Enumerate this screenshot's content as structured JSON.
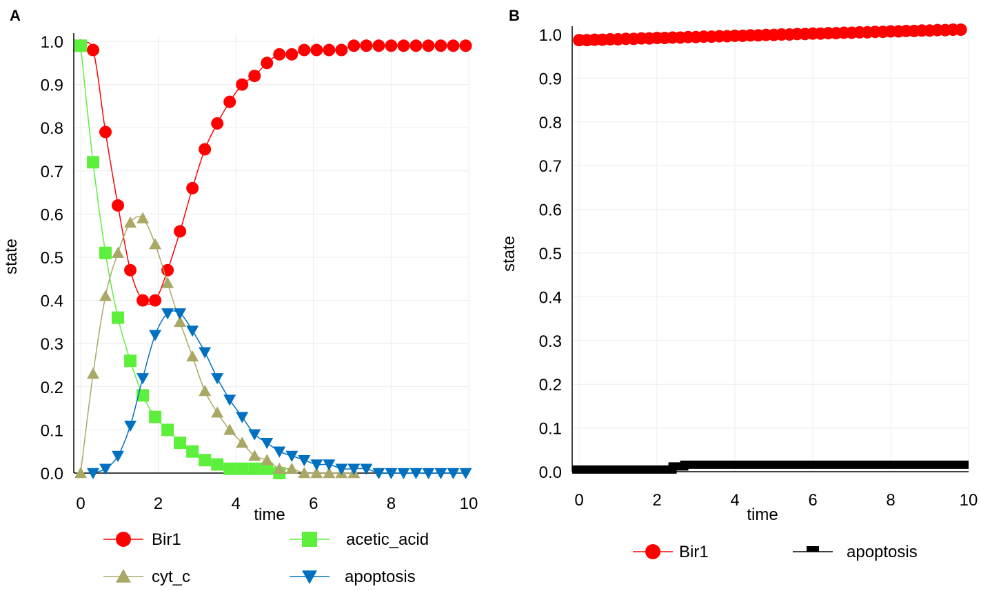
{
  "panels": [
    {
      "label": "A"
    },
    {
      "label": "B"
    }
  ],
  "chart_data": [
    {
      "type": "line",
      "panel": "A",
      "xlabel": "time",
      "ylabel": "state",
      "xlim": [
        0,
        10
      ],
      "ylim": [
        0,
        1
      ],
      "xticks": [
        "0",
        "2",
        "4",
        "6",
        "8",
        "10"
      ],
      "yticks": [
        "0.0",
        "0.1",
        "0.2",
        "0.3",
        "0.4",
        "0.5",
        "0.6",
        "0.7",
        "0.8",
        "0.9",
        "1.0"
      ],
      "grid": true,
      "series": [
        {
          "name": "Bir1",
          "color": "#ff0000",
          "marker": "circle",
          "x": [
            0,
            0.32,
            0.64,
            0.96,
            1.28,
            1.6,
            1.92,
            2.24,
            2.56,
            2.88,
            3.2,
            3.52,
            3.84,
            4.16,
            4.48,
            4.8,
            5.12,
            5.44,
            5.76,
            6.08,
            6.4,
            6.72,
            7.04,
            7.36,
            7.68,
            8.0,
            8.32,
            8.64,
            8.96,
            9.28,
            9.6,
            9.92
          ],
          "values": [
            0.99,
            0.98,
            0.79,
            0.62,
            0.47,
            0.4,
            0.4,
            0.47,
            0.56,
            0.66,
            0.75,
            0.81,
            0.86,
            0.9,
            0.92,
            0.95,
            0.97,
            0.97,
            0.98,
            0.98,
            0.98,
            0.98,
            0.99,
            0.99,
            0.99,
            0.99,
            0.99,
            0.99,
            0.99,
            0.99,
            0.99,
            0.99
          ]
        },
        {
          "name": "acetic_acid",
          "color": "#5cf03c",
          "marker": "square",
          "x": [
            0,
            0.32,
            0.64,
            0.96,
            1.28,
            1.6,
            1.92,
            2.24,
            2.56,
            2.88,
            3.2,
            3.52,
            3.84,
            4.16,
            4.48,
            4.8,
            5.12
          ],
          "values": [
            0.99,
            0.72,
            0.51,
            0.36,
            0.26,
            0.18,
            0.13,
            0.1,
            0.07,
            0.05,
            0.03,
            0.02,
            0.01,
            0.01,
            0.01,
            0.01,
            0.0
          ]
        },
        {
          "name": "cyt_c",
          "color": "#aaa866",
          "marker": "triangle-up",
          "x": [
            0,
            0.32,
            0.64,
            0.96,
            1.28,
            1.6,
            1.92,
            2.24,
            2.56,
            2.88,
            3.2,
            3.52,
            3.84,
            4.16,
            4.48,
            4.8,
            5.12,
            5.44,
            5.76,
            6.08,
            6.4,
            6.72,
            7.04
          ],
          "values": [
            0.0,
            0.23,
            0.41,
            0.51,
            0.58,
            0.59,
            0.53,
            0.44,
            0.35,
            0.27,
            0.19,
            0.14,
            0.1,
            0.07,
            0.04,
            0.03,
            0.01,
            0.01,
            0.0,
            0.0,
            0.0,
            0.0,
            0.0
          ]
        },
        {
          "name": "apoptosis",
          "color": "#0070c0",
          "marker": "triangle-down",
          "x": [
            0.32,
            0.64,
            0.96,
            1.28,
            1.6,
            1.92,
            2.24,
            2.56,
            2.88,
            3.2,
            3.52,
            3.84,
            4.16,
            4.48,
            4.8,
            5.12,
            5.44,
            5.76,
            6.08,
            6.4,
            6.72,
            7.04,
            7.36,
            7.68,
            8.0,
            8.32,
            8.64,
            8.96,
            9.28,
            9.6,
            9.92
          ],
          "values": [
            0.0,
            0.01,
            0.04,
            0.11,
            0.22,
            0.32,
            0.37,
            0.37,
            0.33,
            0.28,
            0.22,
            0.17,
            0.13,
            0.09,
            0.07,
            0.05,
            0.04,
            0.03,
            0.02,
            0.02,
            0.01,
            0.01,
            0.01,
            0.0,
            0.0,
            0.0,
            0.0,
            0.0,
            0.0,
            0.0,
            0.0
          ]
        }
      ]
    },
    {
      "type": "line",
      "panel": "B",
      "xlabel": "time",
      "ylabel": "state",
      "xlim": [
        0,
        10
      ],
      "ylim": [
        0,
        1
      ],
      "xticks": [
        "0",
        "2",
        "4",
        "6",
        "8",
        "10"
      ],
      "yticks": [
        "0.0",
        "0.1",
        "0.2",
        "0.3",
        "0.4",
        "0.5",
        "0.6",
        "0.7",
        "0.8",
        "0.9",
        "1.0"
      ],
      "grid": true,
      "series": [
        {
          "name": "Bir1",
          "color": "#ff0000",
          "marker": "circle",
          "x": [
            0,
            0.2,
            0.4,
            0.6,
            0.8,
            1.0,
            1.2,
            1.4,
            1.6,
            1.8,
            2.0,
            2.2,
            2.4,
            2.6,
            2.8,
            3.0,
            3.2,
            3.4,
            3.6,
            3.8,
            4.0,
            4.2,
            4.4,
            4.6,
            4.8,
            5.0,
            5.2,
            5.4,
            5.6,
            5.8,
            6.0,
            6.2,
            6.4,
            6.6,
            6.8,
            7.0,
            7.2,
            7.4,
            7.6,
            7.8,
            8.0,
            8.2,
            8.4,
            8.6,
            8.8,
            9.0,
            9.2,
            9.4,
            9.6,
            9.8
          ],
          "values": [
            0.987,
            0.987,
            0.988,
            0.988,
            0.989,
            0.989,
            0.99,
            0.99,
            0.991,
            0.991,
            0.992,
            0.992,
            0.993,
            0.993,
            0.994,
            0.994,
            0.995,
            0.995,
            0.996,
            0.996,
            0.997,
            0.997,
            0.998,
            0.998,
            0.999,
            0.999,
            1.0,
            1.0,
            1.001,
            1.001,
            1.002,
            1.002,
            1.003,
            1.003,
            1.004,
            1.004,
            1.005,
            1.005,
            1.006,
            1.006,
            1.007,
            1.007,
            1.008,
            1.008,
            1.009,
            1.009,
            1.01,
            1.01,
            1.011,
            1.011
          ]
        },
        {
          "name": "apoptosis",
          "color": "#000000",
          "marker": "none",
          "x": [
            0,
            2.4,
            2.4,
            2.7,
            2.7,
            10
          ],
          "values": [
            0.005,
            0.005,
            0.012,
            0.012,
            0.016,
            0.016
          ]
        }
      ]
    }
  ]
}
